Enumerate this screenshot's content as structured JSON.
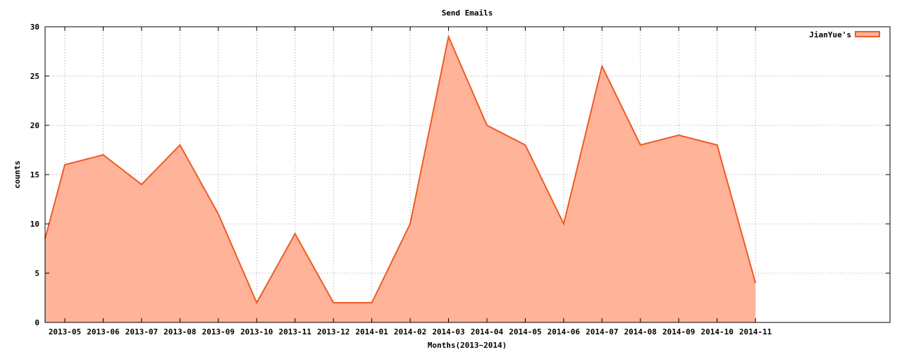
{
  "chart_data": {
    "type": "area",
    "title": "Send Emails",
    "xlabel": "Months(2013~2014)",
    "ylabel": "counts",
    "ylim": [
      0,
      30
    ],
    "yticks": [
      0,
      5,
      10,
      15,
      20,
      25,
      30
    ],
    "grid": true,
    "legend": "top-right",
    "colors": {
      "fill": "#ffb399",
      "line": "#f05a23"
    },
    "x_start_value": 8.5,
    "categories": [
      "2013-05",
      "2013-06",
      "2013-07",
      "2013-08",
      "2013-09",
      "2013-10",
      "2013-11",
      "2013-12",
      "2014-01",
      "2014-02",
      "2014-03",
      "2014-04",
      "2014-05",
      "2014-06",
      "2014-07",
      "2014-08",
      "2014-09",
      "2014-10",
      "2014-11"
    ],
    "series": [
      {
        "name": "JianYue's",
        "values": [
          16,
          17,
          14,
          18,
          11,
          2,
          9,
          2,
          2,
          10,
          29,
          20,
          18,
          10,
          26,
          18,
          19,
          18,
          4
        ]
      }
    ]
  }
}
